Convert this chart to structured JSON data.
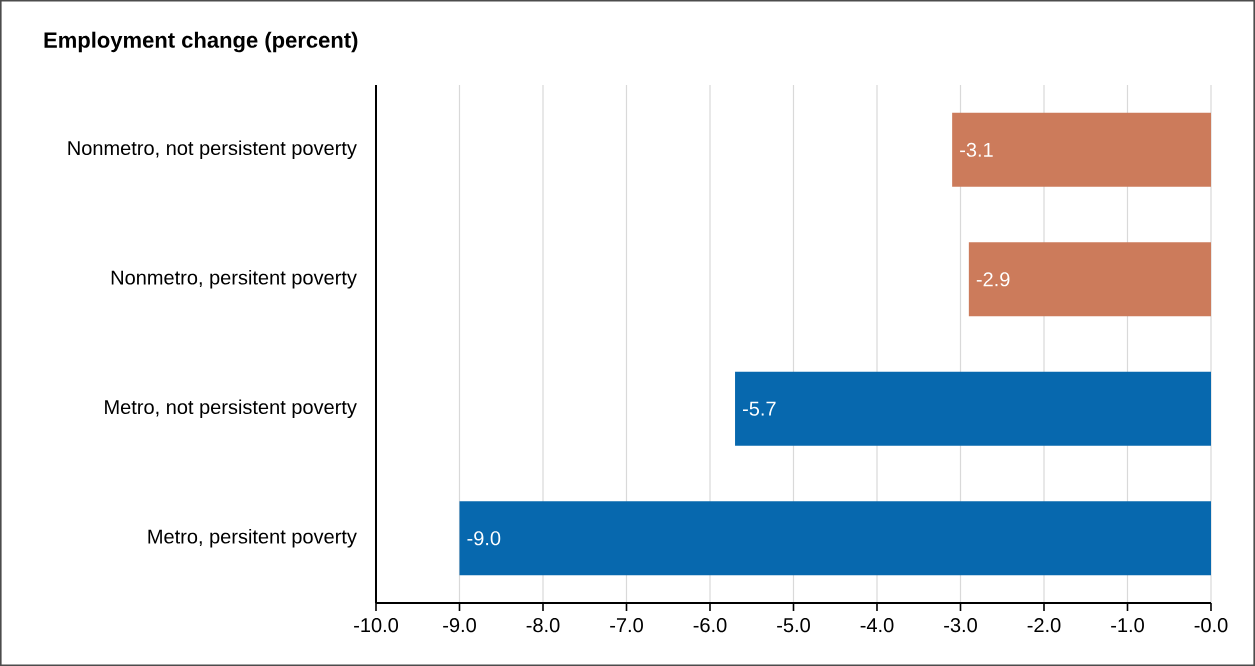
{
  "chart_data": {
    "type": "bar",
    "orientation": "horizontal",
    "title": "Employment change (percent)",
    "categories": [
      "Nonmetro, not persistent poverty",
      "Nonmetro, persitent poverty",
      "Metro, not persistent poverty",
      "Metro, persitent poverty"
    ],
    "values": [
      -3.1,
      -2.9,
      -5.7,
      -9.0
    ],
    "colors": [
      "#cc7b5b",
      "#cc7b5b",
      "#0768ae",
      "#0768ae"
    ],
    "value_labels": [
      "-3.1",
      "-2.9",
      "-5.7",
      "-9.0"
    ],
    "xlim": [
      -10,
      0
    ],
    "xticks": [
      {
        "value": -10,
        "label": "-10.0"
      },
      {
        "value": -9,
        "label": "-9.0"
      },
      {
        "value": -8,
        "label": "-8.0"
      },
      {
        "value": -7,
        "label": "-7.0"
      },
      {
        "value": -6,
        "label": "-6.0"
      },
      {
        "value": -5,
        "label": "-5.0"
      },
      {
        "value": -4,
        "label": "-4.0"
      },
      {
        "value": -3,
        "label": "-3.0"
      },
      {
        "value": -2,
        "label": "-2.0"
      },
      {
        "value": -1,
        "label": "-1.0"
      },
      {
        "value": 0,
        "label": "-0.0"
      }
    ],
    "grid": "x"
  }
}
